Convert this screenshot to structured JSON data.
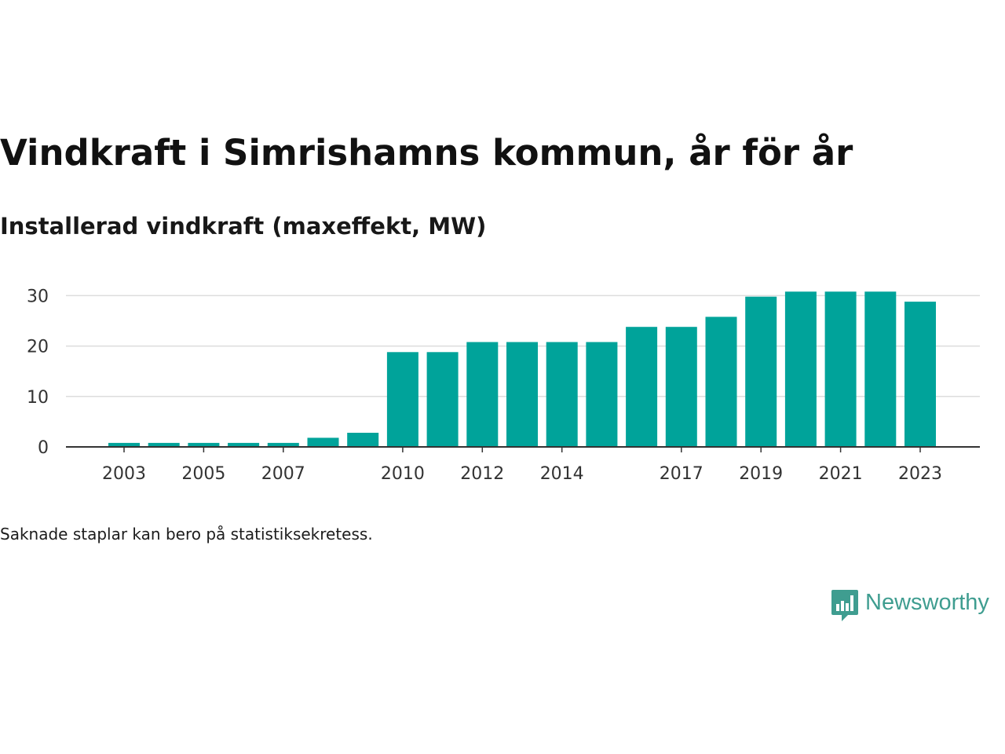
{
  "title": "Vindkraft i Simrishamns kommun, år för år",
  "subtitle": "Installerad vindkraft (maxeffekt, MW)",
  "note": "Saknade staplar kan bero på statistiksekretess.",
  "brand": {
    "name": "Newsworthy",
    "color": "#3f9d90",
    "icon": "newsworthy-logo-icon"
  },
  "colors": {
    "bar": "#00a39a",
    "grid": "#dddddd",
    "axis": "#333333"
  },
  "chart_data": {
    "type": "bar",
    "title": "Vindkraft i Simrishamns kommun, år för år",
    "subtitle": "Installerad vindkraft (maxeffekt, MW)",
    "xlabel": "",
    "ylabel": "",
    "categories": [
      "2003",
      "2004",
      "2005",
      "2006",
      "2007",
      "2008",
      "2009",
      "2010",
      "2011",
      "2012",
      "2013",
      "2014",
      "2015",
      "2016",
      "2017",
      "2018",
      "2019",
      "2020",
      "2021",
      "2022",
      "2023"
    ],
    "values": [
      0.8,
      0.8,
      0.8,
      0.8,
      0.8,
      1.8,
      2.8,
      18.8,
      18.8,
      20.8,
      20.8,
      20.8,
      20.8,
      23.8,
      23.8,
      25.8,
      29.8,
      30.8,
      30.8,
      30.8,
      28.8
    ],
    "x_tick_labels": [
      "2003",
      "2005",
      "2007",
      "2010",
      "2012",
      "2014",
      "2017",
      "2019",
      "2021",
      "2023"
    ],
    "y_ticks": [
      0,
      10,
      20,
      30
    ],
    "ylim": [
      0,
      31
    ],
    "grid": true,
    "legend": "none"
  }
}
